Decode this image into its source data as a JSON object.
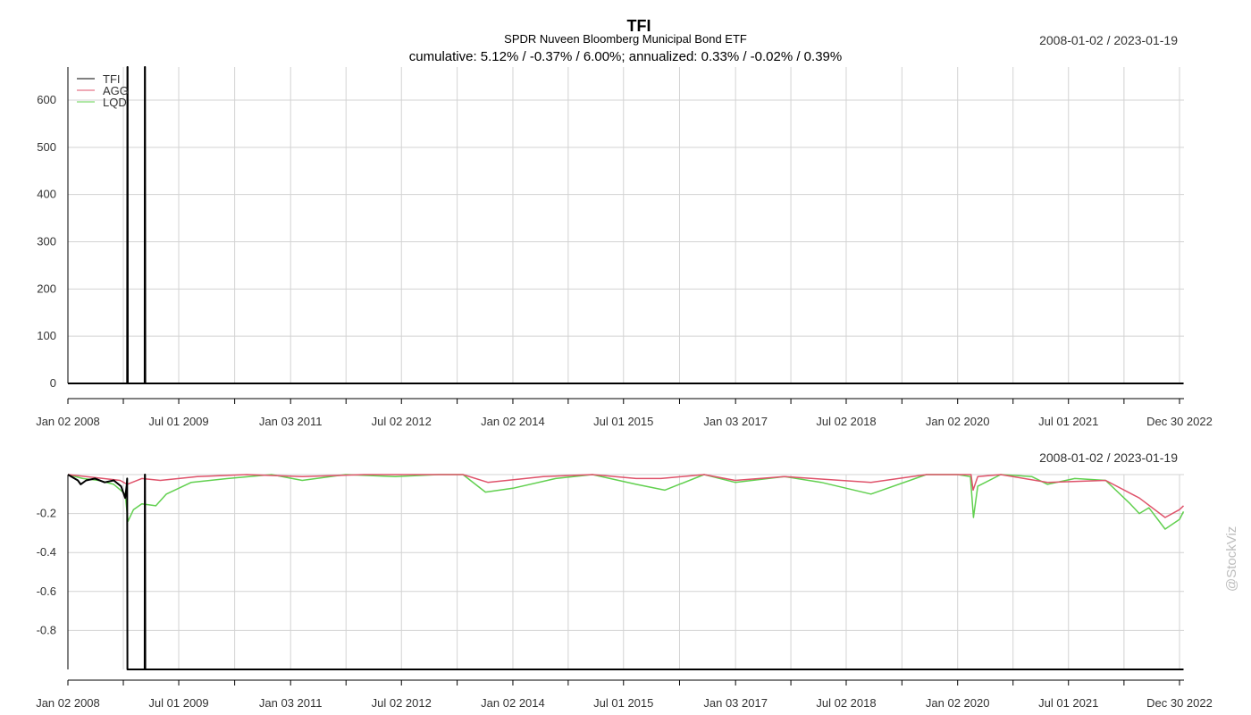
{
  "chart_data": {
    "type": "line",
    "title": "TFI",
    "subtitle": "SPDR Nuveen Bloomberg Municipal Bond ETF",
    "summary": "cumulative: 5.12% / -0.37% / 6.00%; annualized: 0.33% / -0.02% / 0.39%",
    "date_range": "2008-01-02 / 2023-01-19",
    "watermark": "@StockViz",
    "x_tick_labels": [
      "Jan 02 2008",
      "Jul 01 2009",
      "Jan 03 2011",
      "Jul 02 2012",
      "Jan 02 2014",
      "Jul 01 2015",
      "Jan 03 2017",
      "Jul 02 2018",
      "Jan 02 2020",
      "Jul 01 2021",
      "Dec 30 2022"
    ],
    "legend": {
      "placement": "top-left",
      "entries": [
        {
          "name": "TFI",
          "color": "#000000"
        },
        {
          "name": "AGG",
          "color": "#df536b"
        },
        {
          "name": "LQD",
          "color": "#61d04f"
        }
      ]
    },
    "panels": [
      {
        "kind": "cumulative",
        "ylim": [
          0,
          670
        ],
        "y_ticks": [
          0,
          100,
          200,
          300,
          400,
          500,
          600
        ],
        "series": [
          {
            "name": "TFI",
            "color": "#000000",
            "points": [
              [
                "2008-01-02",
                0
              ],
              [
                "2008-10-20",
                0
              ],
              [
                "2008-10-21",
                670
              ],
              [
                "2008-10-22",
                670
              ],
              [
                "2008-10-23",
                0
              ],
              [
                "2009-01-14",
                0
              ],
              [
                "2009-01-15",
                670
              ],
              [
                "2009-01-16",
                670
              ],
              [
                "2009-01-17",
                0
              ],
              [
                "2023-01-19",
                0
              ]
            ]
          }
        ]
      },
      {
        "kind": "drawdown",
        "ylim": [
          -1,
          0
        ],
        "y_ticks": [
          -0.8,
          -0.6,
          -0.4,
          -0.2
        ],
        "series": [
          {
            "name": "LQD",
            "color": "#61d04f",
            "points": [
              [
                "2008-01-02",
                0
              ],
              [
                "2008-03-15",
                -0.02
              ],
              [
                "2008-06-01",
                -0.03
              ],
              [
                "2008-08-15",
                -0.05
              ],
              [
                "2008-10-10",
                -0.1
              ],
              [
                "2008-10-24",
                -0.24
              ],
              [
                "2008-11-20",
                -0.18
              ],
              [
                "2008-12-31",
                -0.15
              ],
              [
                "2009-03-10",
                -0.16
              ],
              [
                "2009-05-01",
                -0.1
              ],
              [
                "2009-09-01",
                -0.04
              ],
              [
                "2010-03-01",
                -0.02
              ],
              [
                "2010-10-01",
                0
              ],
              [
                "2011-03-01",
                -0.03
              ],
              [
                "2011-10-01",
                0
              ],
              [
                "2012-06-01",
                -0.01
              ],
              [
                "2013-01-01",
                0
              ],
              [
                "2013-05-01",
                0
              ],
              [
                "2013-08-20",
                -0.09
              ],
              [
                "2014-01-02",
                -0.07
              ],
              [
                "2014-08-01",
                -0.02
              ],
              [
                "2015-01-29",
                0
              ],
              [
                "2015-09-01",
                -0.05
              ],
              [
                "2016-01-20",
                -0.08
              ],
              [
                "2016-08-01",
                0
              ],
              [
                "2017-01-01",
                -0.04
              ],
              [
                "2017-09-01",
                -0.01
              ],
              [
                "2018-03-01",
                -0.04
              ],
              [
                "2018-11-01",
                -0.1
              ],
              [
                "2019-08-01",
                0
              ],
              [
                "2020-01-02",
                0
              ],
              [
                "2020-03-05",
                -0.01
              ],
              [
                "2020-03-20",
                -0.22
              ],
              [
                "2020-04-10",
                -0.06
              ],
              [
                "2020-08-01",
                0
              ],
              [
                "2021-01-01",
                -0.01
              ],
              [
                "2021-03-20",
                -0.05
              ],
              [
                "2021-08-01",
                -0.02
              ],
              [
                "2021-12-31",
                -0.03
              ],
              [
                "2022-05-01",
                -0.15
              ],
              [
                "2022-06-15",
                -0.2
              ],
              [
                "2022-08-01",
                -0.17
              ],
              [
                "2022-10-20",
                -0.28
              ],
              [
                "2022-12-30",
                -0.23
              ],
              [
                "2023-01-19",
                -0.19
              ]
            ]
          },
          {
            "name": "AGG",
            "color": "#df536b",
            "points": [
              [
                "2008-01-02",
                0
              ],
              [
                "2008-04-01",
                -0.01
              ],
              [
                "2008-09-15",
                -0.03
              ],
              [
                "2008-10-20",
                -0.05
              ],
              [
                "2008-12-31",
                -0.02
              ],
              [
                "2009-04-01",
                -0.03
              ],
              [
                "2009-10-01",
                -0.01
              ],
              [
                "2010-06-01",
                0
              ],
              [
                "2011-03-01",
                -0.01
              ],
              [
                "2012-01-01",
                0
              ],
              [
                "2013-05-01",
                0
              ],
              [
                "2013-09-01",
                -0.04
              ],
              [
                "2014-06-01",
                -0.01
              ],
              [
                "2015-01-29",
                0
              ],
              [
                "2015-09-01",
                -0.02
              ],
              [
                "2016-01-01",
                -0.02
              ],
              [
                "2016-08-01",
                0
              ],
              [
                "2017-01-01",
                -0.03
              ],
              [
                "2017-09-01",
                -0.01
              ],
              [
                "2018-11-01",
                -0.04
              ],
              [
                "2019-08-01",
                0
              ],
              [
                "2020-03-08",
                0
              ],
              [
                "2020-03-18",
                -0.08
              ],
              [
                "2020-04-10",
                -0.01
              ],
              [
                "2020-08-01",
                0
              ],
              [
                "2021-03-20",
                -0.04
              ],
              [
                "2021-12-31",
                -0.03
              ],
              [
                "2022-06-15",
                -0.12
              ],
              [
                "2022-10-20",
                -0.22
              ],
              [
                "2022-12-30",
                -0.18
              ],
              [
                "2023-01-19",
                -0.16
              ]
            ]
          },
          {
            "name": "TFI",
            "color": "#000000",
            "points": [
              [
                "2008-01-02",
                0
              ],
              [
                "2008-02-20",
                -0.03
              ],
              [
                "2008-03-05",
                -0.05
              ],
              [
                "2008-04-01",
                -0.03
              ],
              [
                "2008-05-15",
                -0.02
              ],
              [
                "2008-07-01",
                -0.04
              ],
              [
                "2008-08-15",
                -0.03
              ],
              [
                "2008-09-20",
                -0.06
              ],
              [
                "2008-10-10",
                -0.12
              ],
              [
                "2008-10-18",
                -0.05
              ],
              [
                "2008-10-20",
                -0.02
              ],
              [
                "2008-10-21",
                -1
              ],
              [
                "2009-01-14",
                -1
              ],
              [
                "2009-01-15",
                0
              ],
              [
                "2009-01-16",
                0
              ],
              [
                "2009-01-17",
                -1
              ],
              [
                "2023-01-19",
                -1
              ]
            ]
          }
        ]
      }
    ]
  }
}
